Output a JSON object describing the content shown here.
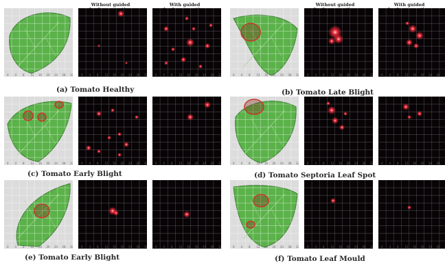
{
  "headers": {
    "without": "Without guided\nbackpropagation",
    "with": "With guided\nbackpropagation"
  },
  "captions": [
    "(a)  Tomato Healthy",
    "(b)  Tomato Late Blight",
    "(c)  Tomato Early Blight",
    "(d)  Tomato Septoria Leaf Spot",
    "(e)  Tomato Early Blight",
    "(f)  Tomato Leaf Mould"
  ],
  "colors": {
    "heatmap_bg": "#080406",
    "activation": "#ff2a3a",
    "leaf": "#5bb24a",
    "lesion_ring": "#c8382c"
  },
  "icons": [
    "leaf-photo",
    "activation-map"
  ]
}
